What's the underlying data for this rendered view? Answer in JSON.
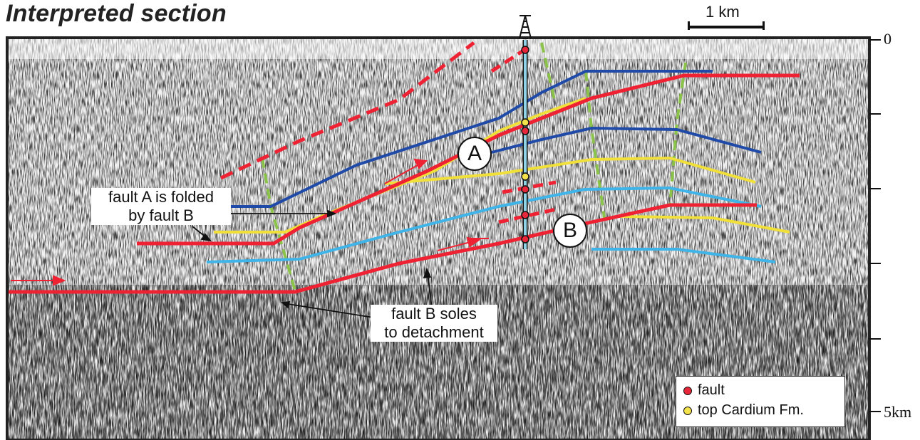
{
  "title": "Interpreted section",
  "scale_bar": {
    "label": "1 km"
  },
  "depth_axis": {
    "top_label": "0",
    "bottom_label": "5km"
  },
  "annotations": {
    "fault_a_folded_line1": "fault A is folded",
    "fault_a_folded_line2": "by fault B",
    "fault_b_soles_line1": "fault B soles",
    "fault_b_soles_line2": "to detachment",
    "label_a": "A",
    "label_b": "B"
  },
  "legend": {
    "fault": {
      "label": "fault",
      "color": "#e8283a"
    },
    "top_cardium": {
      "label": "top Cardium Fm.",
      "color": "#f4e34a"
    }
  },
  "colors": {
    "fault": "#ee2233",
    "dark_blue_horizon": "#1f4aa8",
    "light_blue_horizon": "#3fb4e8",
    "yellow_horizon": "#f1e03a",
    "axial_trace": "#8ac24a",
    "well": "#8fd3e6"
  },
  "icons": {
    "well": "drilling-rig-icon"
  }
}
